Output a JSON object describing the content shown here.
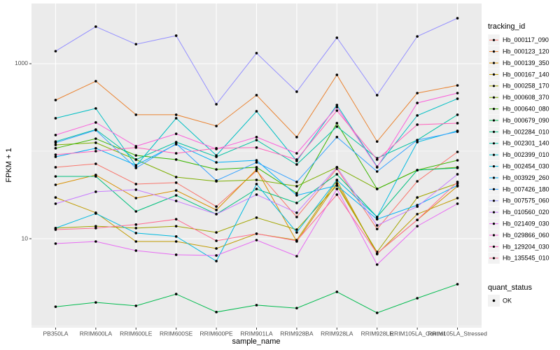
{
  "chart_data": {
    "type": "line",
    "y_label": "FPKM + 1",
    "x_label": "sample_name",
    "log_y": true,
    "grid": true,
    "legend_position": "right",
    "legend_title": "tracking_id",
    "point_legend_title": "quant_status",
    "point_legend_label": "OK",
    "point_color": "#000000",
    "ylim": [
      0.964,
      4875
    ],
    "yticks": [
      10,
      1000
    ],
    "minor_yticks": [
      1,
      100
    ],
    "categories": [
      "PB350LA",
      "RRIM600LA",
      "RRIM600LE",
      "RRIM600SE",
      "RRIM600PE",
      "RRIM901LA",
      "RRIM928BA",
      "RRIM928LA",
      "RRIM928LE",
      "RRIM105LA_Control",
      "RRIM105LA_Stressed"
    ],
    "series": [
      {
        "name": "Hb_000117_090",
        "color": "#F8766D",
        "values": [
          65.5,
          71.8,
          42.1,
          43.7,
          23.3,
          59.7,
          17.7,
          63.1,
          12.9,
          45.3,
          98.2
        ]
      },
      {
        "name": "Hb_000123_120",
        "color": "#EA8331",
        "values": [
          384,
          631,
          261,
          261,
          194,
          437,
          145,
          745,
          129,
          461,
          565
        ]
      },
      {
        "name": "Hb_000139_350",
        "color": "#D89000",
        "values": [
          41.3,
          53.5,
          29.1,
          35.6,
          21.3,
          61.9,
          9.29,
          42.9,
          6.79,
          16.4,
          39.8
        ]
      },
      {
        "name": "Hb_000167_140",
        "color": "#C09B00",
        "values": [
          29.6,
          19.8,
          9.29,
          9.29,
          7.73,
          11.4,
          9.64,
          46.1,
          6.67,
          19.1,
          29.1
        ]
      },
      {
        "name": "Hb_000258_170",
        "color": "#A3A500",
        "values": [
          13.2,
          13.9,
          13.2,
          13.9,
          11.8,
          17.4,
          12.7,
          40.6,
          7.05,
          29.6,
          42.9
        ]
      },
      {
        "name": "Hb_000608_370",
        "color": "#7CAE00",
        "values": [
          118,
          125,
          80.2,
          50.6,
          45.3,
          47.0,
          39.8,
          65.5,
          37.0,
          60.8,
          65.5
        ]
      },
      {
        "name": "Hb_000640_080",
        "color": "#39B600",
        "values": [
          108,
          139,
          89.5,
          80.2,
          61.9,
          65.5,
          33.1,
          209,
          37.0,
          60.8,
          78.7
        ]
      },
      {
        "name": "Hb_000679_090",
        "color": "#00BB4E",
        "values": [
          1.67,
          1.87,
          1.71,
          2.33,
          1.45,
          1.74,
          1.61,
          2.47,
          1.42,
          2.09,
          3.02
        ]
      },
      {
        "name": "Hb_002284_010",
        "color": "#00BF7D",
        "values": [
          51.5,
          51.5,
          20.5,
          31.3,
          19.1,
          37.0,
          25.6,
          54.5,
          17.7,
          60.8,
          64.3
        ]
      },
      {
        "name": "Hb_002301_140",
        "color": "#00C1A3",
        "values": [
          129,
          177,
          80.2,
          127,
          86.3,
          134,
          70.5,
          191,
          83.2,
          134,
          261
        ]
      },
      {
        "name": "Hb_002399_010",
        "color": "#00BFC4",
        "values": [
          238,
          308,
          67.9,
          238,
          89.5,
          286,
          77.3,
          337,
          66.7,
          256,
          398
        ]
      },
      {
        "name": "Hb_002454_030",
        "color": "#00BAE0",
        "values": [
          13.2,
          19.4,
          11.6,
          10.6,
          5.55,
          42.1,
          11.8,
          47.0,
          17.7,
          127,
          171
        ]
      },
      {
        "name": "Hb_003929_260",
        "color": "#00B0F6",
        "values": [
          86.3,
          108,
          69.2,
          120,
          74.5,
          78.7,
          31.3,
          40.6,
          16.7,
          24.2,
          40.6
        ]
      },
      {
        "name": "Hb_007426_180",
        "color": "#35A2FF",
        "values": [
          125,
          174,
          64.3,
          122,
          46.1,
          74.5,
          44.5,
          145,
          58.6,
          134,
          167
        ]
      },
      {
        "name": "Hb_007575_060",
        "color": "#9590FF",
        "values": [
          1390,
          2650,
          1670,
          2090,
          344,
          1320,
          479,
          1980,
          437,
          2050,
          3310
        ]
      },
      {
        "name": "Hb_010560_020",
        "color": "#C77CFF",
        "values": [
          25.1,
          34.4,
          36.3,
          27.0,
          19.1,
          31.9,
          19.8,
          65.5,
          14.2,
          23.3,
          54.5
        ]
      },
      {
        "name": "Hb_021409_030",
        "color": "#E76BF3",
        "values": [
          8.79,
          9.29,
          7.31,
          6.55,
          6.43,
          9.64,
          6.31,
          37.0,
          5.06,
          13.9,
          25.1
        ]
      },
      {
        "name": "Hb_029866_060",
        "color": "#FA62DB",
        "values": [
          153,
          213,
          114,
          158,
          106,
          145,
          94.6,
          319,
          65.5,
          356,
          461
        ]
      },
      {
        "name": "Hb_129204_030",
        "color": "#FF62BC",
        "values": [
          91.2,
          100,
          110,
          94.6,
          108,
          110,
          80.2,
          291,
          80.2,
          201,
          209
        ]
      },
      {
        "name": "Hb_135545_010",
        "color": "#FF6C91",
        "values": [
          12.7,
          13.2,
          14.5,
          16.7,
          9.46,
          11.4,
          9.46,
          31.9,
          6.79,
          16.4,
          44.5
        ]
      }
    ]
  }
}
